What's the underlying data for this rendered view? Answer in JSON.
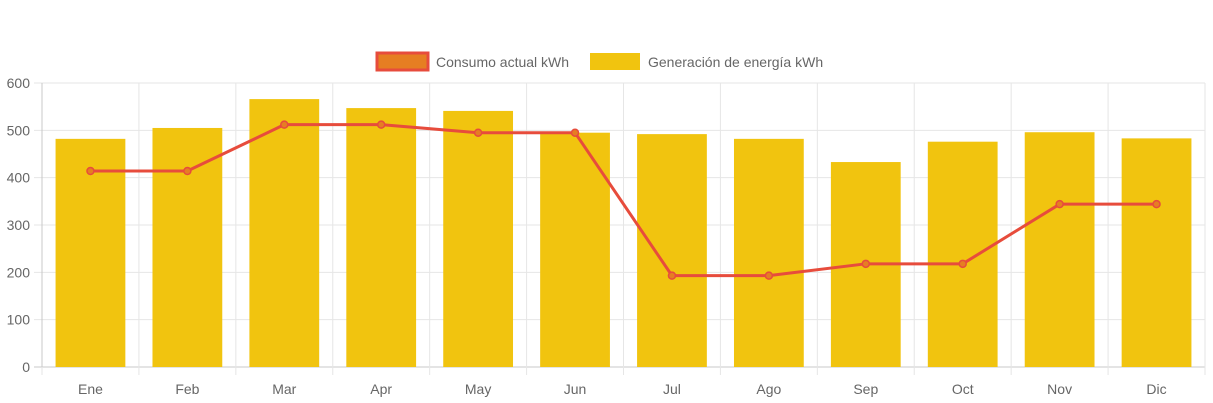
{
  "chart_data": {
    "type": "bar",
    "categories": [
      "Ene",
      "Feb",
      "Mar",
      "Apr",
      "May",
      "Jun",
      "Jul",
      "Ago",
      "Sep",
      "Oct",
      "Nov",
      "Dic"
    ],
    "series": [
      {
        "name": "Generación de energía kWh",
        "type": "bar",
        "color": "#f1c40f",
        "values": [
          482,
          505,
          566,
          547,
          541,
          495,
          492,
          482,
          433,
          476,
          496,
          483
        ]
      },
      {
        "name": "Consumo actual kWh",
        "type": "line",
        "color": "#e74c3c",
        "fill_color": "#e67e22",
        "values": [
          414,
          414,
          512,
          512,
          495,
          495,
          193,
          193,
          218,
          218,
          344,
          344
        ]
      }
    ],
    "ylim": [
      0,
      600
    ],
    "yticks": [
      0,
      100,
      200,
      300,
      400,
      500,
      600
    ],
    "grid": true,
    "legend_position": "top-center"
  }
}
